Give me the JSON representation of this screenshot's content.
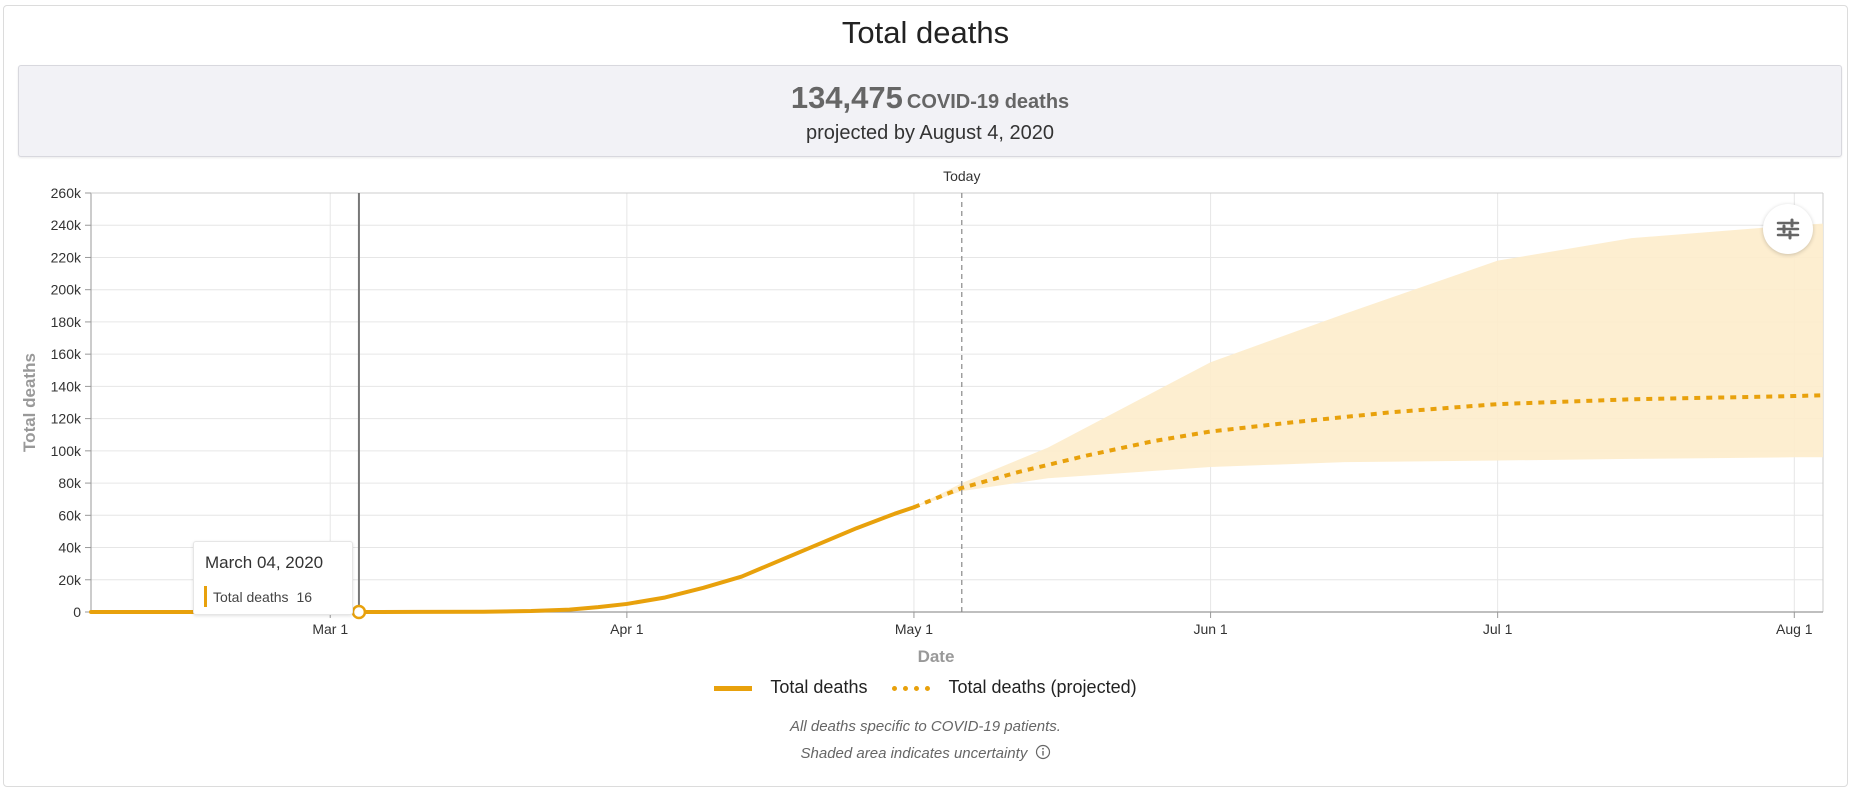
{
  "title": "Total deaths",
  "summary": {
    "value": "134,475",
    "unit": "COVID-19 deaths",
    "subtitle": "projected by August 4, 2020"
  },
  "colors": {
    "accent": "#e8a10c",
    "band": "#fdeccb",
    "grid": "#e6e6e6"
  },
  "icons": {
    "settings": "sliders-icon",
    "info": "info-icon"
  },
  "tooltip": {
    "date": "March 04, 2020",
    "label": "Total deaths",
    "value": "16"
  },
  "legend": {
    "actual": "Total deaths",
    "projected": "Total deaths (projected)"
  },
  "notes": {
    "line1": "All deaths specific to COVID-19 patients.",
    "line2": "Shaded area indicates uncertainty"
  },
  "chart_data": {
    "type": "line",
    "xlabel": "Date",
    "ylabel": "Total deaths",
    "x_start": "2020-02-05",
    "x_end": "2020-08-04",
    "ylim": [
      0,
      260000
    ],
    "yticks": [
      0,
      20000,
      40000,
      60000,
      80000,
      100000,
      120000,
      140000,
      160000,
      180000,
      200000,
      220000,
      240000,
      260000
    ],
    "ytick_labels": [
      "0",
      "20k",
      "40k",
      "60k",
      "80k",
      "100k",
      "120k",
      "140k",
      "160k",
      "180k",
      "200k",
      "220k",
      "240k",
      "260k"
    ],
    "xticks": [
      {
        "date": "2020-03-01",
        "label": "Mar 1"
      },
      {
        "date": "2020-04-01",
        "label": "Apr 1"
      },
      {
        "date": "2020-05-01",
        "label": "May 1"
      },
      {
        "date": "2020-06-01",
        "label": "Jun 1"
      },
      {
        "date": "2020-07-01",
        "label": "Jul 1"
      },
      {
        "date": "2020-08-01",
        "label": "Aug 1"
      }
    ],
    "today": {
      "date": "2020-05-06",
      "label": "Today"
    },
    "hover": {
      "date": "2020-03-04",
      "value": 16
    },
    "grid": true,
    "legend_position": "bottom",
    "series": [
      {
        "name": "Total deaths",
        "style": "solid",
        "points": [
          {
            "date": "2020-02-05",
            "value": 0
          },
          {
            "date": "2020-02-20",
            "value": 0
          },
          {
            "date": "2020-03-04",
            "value": 16
          },
          {
            "date": "2020-03-10",
            "value": 50
          },
          {
            "date": "2020-03-17",
            "value": 150
          },
          {
            "date": "2020-03-22",
            "value": 600
          },
          {
            "date": "2020-03-26",
            "value": 1500
          },
          {
            "date": "2020-03-29",
            "value": 3000
          },
          {
            "date": "2020-04-01",
            "value": 5000
          },
          {
            "date": "2020-04-05",
            "value": 9000
          },
          {
            "date": "2020-04-09",
            "value": 15000
          },
          {
            "date": "2020-04-13",
            "value": 22000
          },
          {
            "date": "2020-04-17",
            "value": 32000
          },
          {
            "date": "2020-04-21",
            "value": 42000
          },
          {
            "date": "2020-04-25",
            "value": 52000
          },
          {
            "date": "2020-04-29",
            "value": 61000
          },
          {
            "date": "2020-05-01",
            "value": 65000
          }
        ]
      },
      {
        "name": "Total deaths (projected)",
        "style": "dotted",
        "points": [
          {
            "date": "2020-05-01",
            "value": 65000
          },
          {
            "date": "2020-05-06",
            "value": 77000
          },
          {
            "date": "2020-05-12",
            "value": 87000
          },
          {
            "date": "2020-05-19",
            "value": 97000
          },
          {
            "date": "2020-05-26",
            "value": 106000
          },
          {
            "date": "2020-06-01",
            "value": 112000
          },
          {
            "date": "2020-06-10",
            "value": 118000
          },
          {
            "date": "2020-06-20",
            "value": 124000
          },
          {
            "date": "2020-07-01",
            "value": 129000
          },
          {
            "date": "2020-07-15",
            "value": 132000
          },
          {
            "date": "2020-08-01",
            "value": 134000
          },
          {
            "date": "2020-08-04",
            "value": 134475
          }
        ]
      }
    ],
    "uncertainty": [
      {
        "date": "2020-05-01",
        "lower": 65000,
        "upper": 65000
      },
      {
        "date": "2020-05-06",
        "lower": 75000,
        "upper": 80000
      },
      {
        "date": "2020-05-15",
        "lower": 83000,
        "upper": 102000
      },
      {
        "date": "2020-06-01",
        "lower": 90000,
        "upper": 155000
      },
      {
        "date": "2020-06-15",
        "lower": 93000,
        "upper": 185000
      },
      {
        "date": "2020-07-01",
        "lower": 94000,
        "upper": 218000
      },
      {
        "date": "2020-07-15",
        "lower": 95000,
        "upper": 232000
      },
      {
        "date": "2020-08-01",
        "lower": 96000,
        "upper": 240000
      },
      {
        "date": "2020-08-04",
        "lower": 96000,
        "upper": 241000
      }
    ]
  }
}
